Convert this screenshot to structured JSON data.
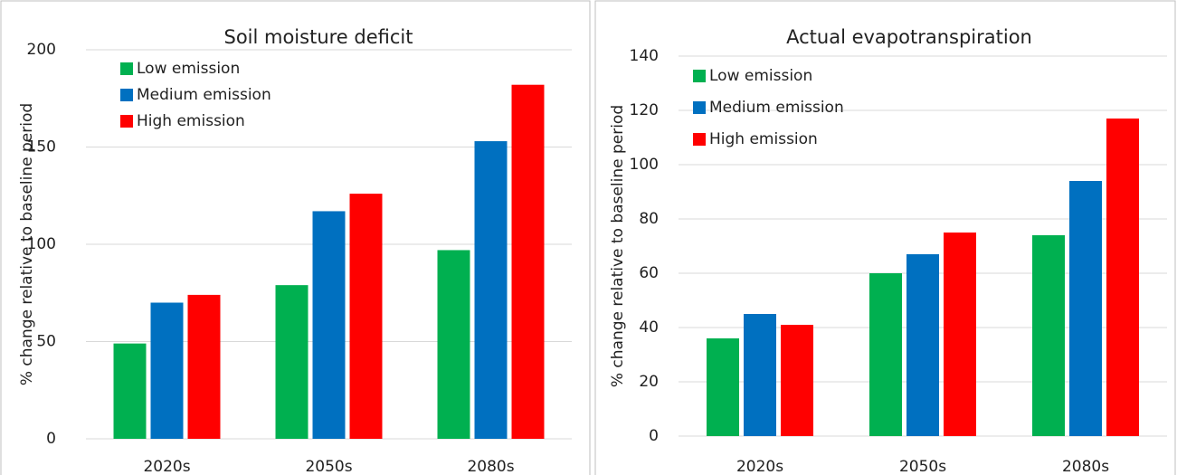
{
  "chart_data": [
    {
      "type": "bar",
      "title": "Soil moisture deficit",
      "y_label": "% change relative to baseline period",
      "categories": [
        "2020s",
        "2050s",
        "2080s"
      ],
      "series": [
        {
          "name": "Low emission",
          "color": "#00b050",
          "values": [
            49,
            79,
            97
          ]
        },
        {
          "name": "Medium emission",
          "color": "#0070c0",
          "values": [
            70,
            117,
            153
          ]
        },
        {
          "name": "High emission",
          "color": "#ff0000",
          "values": [
            74,
            126,
            182
          ]
        }
      ],
      "ylim": [
        0,
        200
      ],
      "yticks": [
        0,
        50,
        100,
        150,
        200
      ],
      "grid": true,
      "legend": "upper-left"
    },
    {
      "type": "bar",
      "title": "Actual evapotranspiration",
      "y_label": "% change relative to baseline period",
      "categories": [
        "2020s",
        "2050s",
        "2080s"
      ],
      "series": [
        {
          "name": "Low emission",
          "color": "#00b050",
          "values": [
            36,
            60,
            74
          ]
        },
        {
          "name": "Medium emission",
          "color": "#0070c0",
          "values": [
            45,
            67,
            94
          ]
        },
        {
          "name": "High emission",
          "color": "#ff0000",
          "values": [
            41,
            75,
            117
          ]
        }
      ],
      "ylim": [
        0,
        140
      ],
      "yticks": [
        0,
        20,
        40,
        60,
        80,
        100,
        120,
        140
      ],
      "grid": true,
      "legend": "upper-left"
    }
  ]
}
